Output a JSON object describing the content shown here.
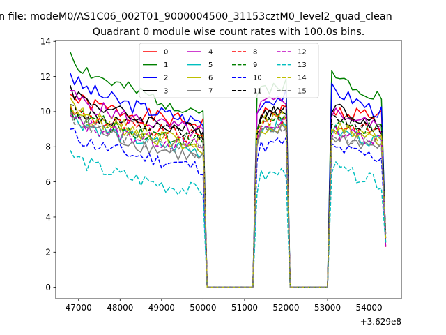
{
  "suptitle": "n file: modeM0/AS1C06_002T01_9000004500_31153cztM0_level2_quad_clean",
  "chart_data": {
    "type": "line",
    "title": "Quadrant 0 module wise count rates with 100.0s bins.",
    "xlabel": "",
    "ylabel": "",
    "x_offset_label": "+3.629e8",
    "xlim": [
      46450,
      54780
    ],
    "ylim": [
      -0.65,
      14.05
    ],
    "xticks": [
      47000,
      48000,
      49000,
      50000,
      51000,
      52000,
      53000,
      54000
    ],
    "yticks": [
      0,
      2,
      4,
      6,
      8,
      10,
      12,
      14
    ],
    "grid": false,
    "legend": {
      "placement": "upper-center",
      "columns": 4
    },
    "time_segments": [
      {
        "start": 46800,
        "end": 50000
      },
      {
        "start": 51200,
        "end": 52000
      },
      {
        "start": 53000,
        "end": 54400
      }
    ],
    "gaps": [
      {
        "start": 50100,
        "end": 51200
      },
      {
        "start": 52100,
        "end": 53000
      }
    ],
    "gap_value": 0,
    "series": [
      {
        "name": "0",
        "color": "#ff0000",
        "dash": "solid",
        "levels": [
          11.0,
          9.3,
          9.7,
          10.0,
          9.8
        ]
      },
      {
        "name": "1",
        "color": "#008000",
        "dash": "solid",
        "levels": [
          13.4,
          10.0,
          11.2,
          12.2,
          10.7
        ]
      },
      {
        "name": "2",
        "color": "#0000ff",
        "dash": "solid",
        "levels": [
          12.2,
          9.4,
          10.5,
          11.4,
          9.8
        ]
      },
      {
        "name": "3",
        "color": "#000000",
        "dash": "solid",
        "levels": [
          11.5,
          8.8,
          9.8,
          10.4,
          9.1
        ]
      },
      {
        "name": "4",
        "color": "#bf00bf",
        "dash": "solid",
        "levels": [
          11.2,
          8.8,
          10.3,
          10.1,
          9.0
        ]
      },
      {
        "name": "5",
        "color": "#00bfbf",
        "dash": "solid",
        "levels": [
          10.0,
          7.7,
          9.0,
          9.0,
          8.2
        ]
      },
      {
        "name": "6",
        "color": "#bfbf00",
        "dash": "solid",
        "levels": [
          10.8,
          7.9,
          8.8,
          9.2,
          8.3
        ]
      },
      {
        "name": "7",
        "color": "#808080",
        "dash": "solid",
        "levels": [
          10.1,
          7.3,
          8.6,
          8.6,
          7.9
        ]
      },
      {
        "name": "8",
        "color": "#ff0000",
        "dash": "dashed",
        "levels": [
          10.3,
          8.5,
          9.3,
          9.3,
          8.9
        ]
      },
      {
        "name": "9",
        "color": "#008000",
        "dash": "dashed",
        "levels": [
          10.2,
          8.3,
          9.4,
          9.2,
          8.9
        ]
      },
      {
        "name": "10",
        "color": "#0000ff",
        "dash": "dashed",
        "levels": [
          9.0,
          6.8,
          7.9,
          8.0,
          7.3
        ]
      },
      {
        "name": "11",
        "color": "#000000",
        "dash": "dashed",
        "levels": [
          10.4,
          8.6,
          9.7,
          9.6,
          9.0
        ]
      },
      {
        "name": "12",
        "color": "#bf00bf",
        "dash": "dashed",
        "levels": [
          9.8,
          8.0,
          9.0,
          8.9,
          8.4
        ]
      },
      {
        "name": "13",
        "color": "#00bfbf",
        "dash": "dashed",
        "levels": [
          7.8,
          5.4,
          6.2,
          6.9,
          5.8
        ]
      },
      {
        "name": "14",
        "color": "#bfbf00",
        "dash": "dashed",
        "levels": [
          10.4,
          8.3,
          9.3,
          9.3,
          8.4
        ]
      },
      {
        "name": "15",
        "color": "#808080",
        "dash": "dashed",
        "levels": [
          10.0,
          7.7,
          8.8,
          8.8,
          8.0
        ]
      }
    ]
  }
}
